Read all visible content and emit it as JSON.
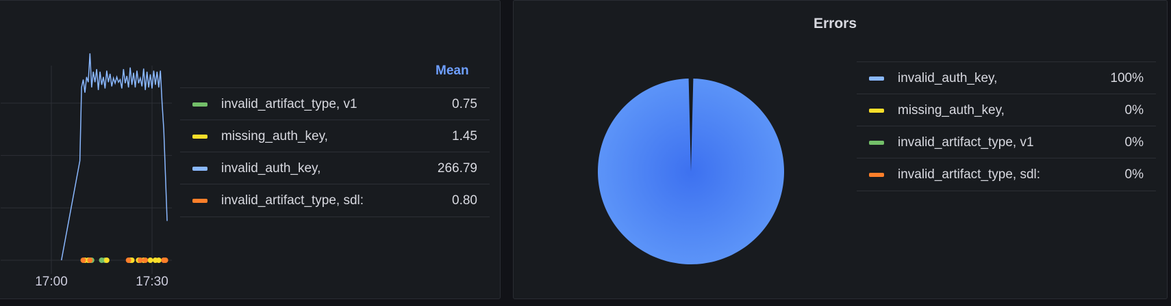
{
  "chart_data": [
    {
      "type": "line",
      "title": "",
      "xlabel": "",
      "ylabel": "",
      "x_ticks": [
        "17:00",
        "17:30"
      ],
      "xlim": [
        "16:45",
        "17:36"
      ],
      "ylim": [
        0,
        400
      ],
      "grid": true,
      "legend_placement": "right",
      "legend_header": "Mean",
      "series": [
        {
          "name": "invalid_artifact_type, v1",
          "mean": "0.75",
          "color": "#73bf69",
          "points": [
            [
              "17:11:30",
              0
            ],
            [
              "17:12:00",
              0
            ],
            [
              "17:15:00",
              0
            ],
            [
              "17:16:00",
              0
            ]
          ]
        },
        {
          "name": "missing_auth_key,",
          "mean": "1.45",
          "color": "#fade2a",
          "points": [
            [
              "17:10:00",
              0
            ],
            [
              "17:11:00",
              0
            ],
            [
              "17:16:30",
              0
            ],
            [
              "17:23:30",
              0
            ],
            [
              "17:24:00",
              0
            ],
            [
              "17:26:00",
              0
            ],
            [
              "17:27:30",
              0
            ],
            [
              "17:29:30",
              0
            ],
            [
              "17:31:00",
              0
            ],
            [
              "17:32:00",
              0
            ]
          ]
        },
        {
          "name": "invalid_auth_key,",
          "mean": "266.79",
          "color": "#8ab8ff",
          "points": [
            [
              "17:03:00",
              0
            ],
            [
              "17:08:30",
              190
            ],
            [
              "17:09:00",
              330
            ],
            [
              "17:09:30",
              345
            ],
            [
              "17:10:00",
              320
            ],
            [
              "17:10:30",
              350
            ],
            [
              "17:11:00",
              340
            ],
            [
              "17:11:30",
              395
            ],
            [
              "17:12:00",
              330
            ],
            [
              "17:12:30",
              360
            ],
            [
              "17:13:00",
              340
            ],
            [
              "17:13:30",
              365
            ],
            [
              "17:14:00",
              325
            ],
            [
              "17:14:30",
              360
            ],
            [
              "17:15:00",
              335
            ],
            [
              "17:15:30",
              350
            ],
            [
              "17:16:00",
              328
            ],
            [
              "17:16:30",
              362
            ],
            [
              "17:17:00",
              340
            ],
            [
              "17:17:30",
              356
            ],
            [
              "17:18:00",
              332
            ],
            [
              "17:18:30",
              348
            ],
            [
              "17:19:00",
              338
            ],
            [
              "17:19:30",
              350
            ],
            [
              "17:20:00",
              340
            ],
            [
              "17:20:30",
              345
            ],
            [
              "17:21:00",
              328
            ],
            [
              "17:21:30",
              365
            ],
            [
              "17:22:00",
              338
            ],
            [
              "17:22:30",
              352
            ],
            [
              "17:23:00",
              330
            ],
            [
              "17:23:30",
              368
            ],
            [
              "17:24:00",
              335
            ],
            [
              "17:24:30",
              358
            ],
            [
              "17:25:00",
              330
            ],
            [
              "17:25:30",
              362
            ],
            [
              "17:26:00",
              338
            ],
            [
              "17:26:30",
              348
            ],
            [
              "17:27:00",
              332
            ],
            [
              "17:27:30",
              366
            ],
            [
              "17:28:00",
              325
            ],
            [
              "17:28:30",
              360
            ],
            [
              "17:29:00",
              330
            ],
            [
              "17:29:30",
              355
            ],
            [
              "17:30:00",
              328
            ],
            [
              "17:30:30",
              362
            ],
            [
              "17:31:00",
              335
            ],
            [
              "17:31:30",
              360
            ],
            [
              "17:32:00",
              330
            ],
            [
              "17:32:30",
              362
            ],
            [
              "17:33:00",
              300
            ],
            [
              "17:33:30",
              250
            ],
            [
              "17:34:30",
              75
            ]
          ]
        },
        {
          "name": "invalid_artifact_type, sdl:",
          "mean": "0.80",
          "color": "#ff7f2a",
          "points": [
            [
              "17:09:30",
              0
            ],
            [
              "17:11:30",
              0
            ],
            [
              "17:23:00",
              0
            ],
            [
              "17:26:30",
              0
            ],
            [
              "17:28:00",
              0
            ],
            [
              "17:33:30",
              0
            ],
            [
              "17:34:00",
              0
            ]
          ]
        }
      ]
    },
    {
      "type": "pie",
      "title": "Errors",
      "legend_placement": "right",
      "slices": [
        {
          "name": "invalid_auth_key,",
          "value": 100,
          "label": "100%",
          "color": "#8ab8ff"
        },
        {
          "name": "missing_auth_key,",
          "value": 0,
          "label": "0%",
          "color": "#fade2a"
        },
        {
          "name": "invalid_artifact_type, v1",
          "value": 0,
          "label": "0%",
          "color": "#73bf69"
        },
        {
          "name": "invalid_artifact_type, sdl:",
          "value": 0,
          "label": "0%",
          "color": "#ff7f2a"
        }
      ]
    }
  ]
}
